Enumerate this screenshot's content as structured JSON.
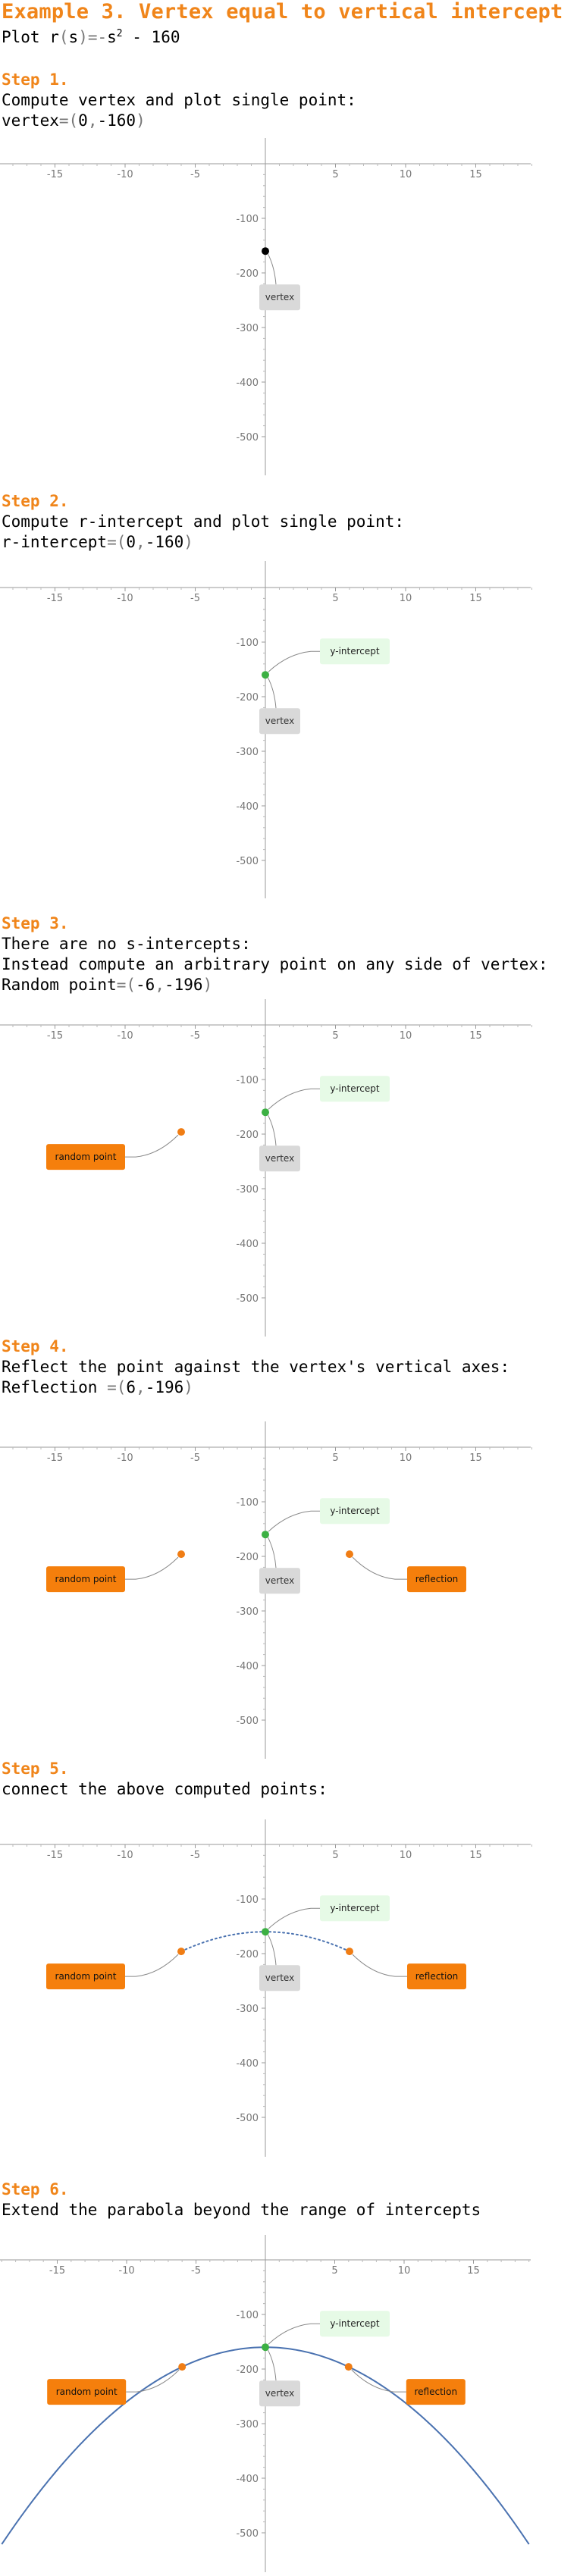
{
  "header": {
    "title": "Example 3. Vertex equal to vertical intercept",
    "plot_prefix": "Plot ",
    "func_name": "r",
    "func_var": "s",
    "func_eq": "=-",
    "func_var2": "s",
    "func_exp": "2",
    "func_tail": " - 160"
  },
  "steps": [
    {
      "title": "Step 1.",
      "lines": [
        "Compute vertex and plot single point:"
      ],
      "result": {
        "label": "vertex",
        "eq": "=",
        "open": "(",
        "x": "0",
        "sep": ",",
        "y": "-160",
        "close": ")"
      }
    },
    {
      "title": "Step 2.",
      "lines": [
        "Compute r-intercept and plot single point:"
      ],
      "result": {
        "label": "r-intercept",
        "eq": "=",
        "open": "(",
        "x": "0",
        "sep": ",",
        "y": "-160",
        "close": ")"
      }
    },
    {
      "title": "Step 3.",
      "lines": [
        "There are no s-intercepts:",
        "Instead compute an arbitrary point on any side of vertex:"
      ],
      "result": {
        "label": "Random point",
        "eq": "=",
        "open": "(",
        "x": "-6",
        "sep": ",",
        "y": "-196",
        "close": ")"
      }
    },
    {
      "title": "Step 4.",
      "lines": [
        "Reflect the point against the vertex's vertical axes:"
      ],
      "result": {
        "label": "Reflection ",
        "eq": "=",
        "open": "(",
        "x": "6",
        "sep": ",",
        "y": "-196",
        "close": ")"
      }
    },
    {
      "title": "Step 5.",
      "lines": [
        "connect the above computed points:"
      ],
      "result": null
    },
    {
      "title": "Step 6.",
      "lines": [
        "Extend the parabola beyond the range of intercepts"
      ],
      "result": null
    }
  ],
  "axes": {
    "x_ticks": [
      "-15",
      "-10",
      "-5",
      "5",
      "10",
      "15"
    ],
    "y_ticks": [
      "-100",
      "-200",
      "-300",
      "-400",
      "-500"
    ]
  },
  "labels": {
    "vertex": "vertex",
    "y_intercept": "y-intercept",
    "random_point": "random point",
    "reflection": "reflection"
  },
  "colors": {
    "accent": "#f0851a",
    "point_orange": "#f07d14",
    "point_green": "#3cb043",
    "vertex_point": "#000000",
    "curve": "#4a72b0",
    "label_gray": "#d9d9d9",
    "label_green": "#e6fae6",
    "label_orange": "#f57f0c"
  },
  "chart_data": [
    {
      "type": "scatter",
      "title": "",
      "xlim": [
        -19,
        19
      ],
      "ylim": [
        -560,
        0
      ],
      "points": [
        {
          "x": 0,
          "y": -160,
          "label": "vertex"
        }
      ]
    },
    {
      "type": "scatter",
      "title": "",
      "xlim": [
        -19,
        19
      ],
      "ylim": [
        -560,
        0
      ],
      "points": [
        {
          "x": 0,
          "y": -160,
          "label": "y-intercept"
        }
      ]
    },
    {
      "type": "scatter",
      "title": "",
      "xlim": [
        -19,
        19
      ],
      "ylim": [
        -560,
        0
      ],
      "points": [
        {
          "x": 0,
          "y": -160,
          "label": "y-intercept"
        },
        {
          "x": -6,
          "y": -196,
          "label": "random point"
        }
      ]
    },
    {
      "type": "scatter",
      "title": "",
      "xlim": [
        -19,
        19
      ],
      "ylim": [
        -560,
        0
      ],
      "points": [
        {
          "x": 0,
          "y": -160,
          "label": "y-intercept"
        },
        {
          "x": -6,
          "y": -196,
          "label": "random point"
        },
        {
          "x": 6,
          "y": -196,
          "label": "reflection"
        }
      ]
    },
    {
      "type": "line",
      "title": "",
      "xlim": [
        -19,
        19
      ],
      "ylim": [
        -560,
        0
      ],
      "points": [
        {
          "x": 0,
          "y": -160,
          "label": "y-intercept"
        },
        {
          "x": -6,
          "y": -196,
          "label": "random point"
        },
        {
          "x": 6,
          "y": -196,
          "label": "reflection"
        }
      ],
      "curve": {
        "function": "-s^2/1 scaled",
        "x_range": [
          -6,
          6
        ],
        "style": "dotted"
      }
    },
    {
      "type": "line",
      "title": "",
      "xlim": [
        -19,
        19
      ],
      "ylim": [
        -560,
        0
      ],
      "points": [
        {
          "x": 0,
          "y": -160,
          "label": "y-intercept"
        },
        {
          "x": -6,
          "y": -196,
          "label": "random point"
        },
        {
          "x": 6,
          "y": -196,
          "label": "reflection"
        }
      ],
      "curve": {
        "function": "r(s) = -s^2 - 160",
        "x_range": [
          -19,
          19
        ],
        "style": "solid"
      }
    }
  ]
}
